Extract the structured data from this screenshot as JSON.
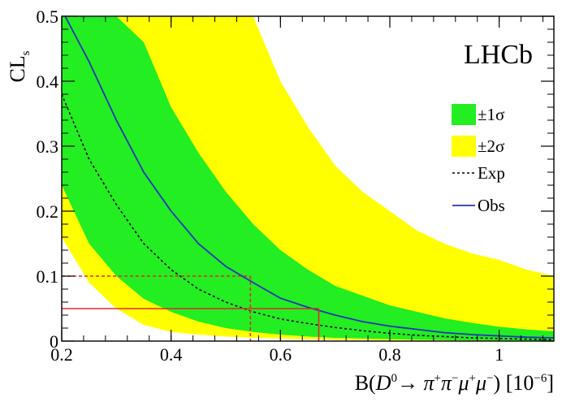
{
  "chart_data": {
    "type": "area",
    "title": "",
    "experiment_label": "LHCb",
    "xlabel": "B(D0 → π+π−μ+μ−) [10−6]",
    "ylabel": "CLs",
    "xlim": [
      0.2,
      1.1
    ],
    "ylim": [
      0,
      0.5
    ],
    "x_ticks": [
      "0.2",
      "0.4",
      "0.6",
      "0.8",
      "1"
    ],
    "y_ticks": [
      "0",
      "0.1",
      "0.2",
      "0.3",
      "0.4",
      "0.5"
    ],
    "legend_position": "right",
    "legend": [
      {
        "label": "±1σ",
        "kind": "band-1sigma"
      },
      {
        "label": "±2σ",
        "kind": "band-2sigma"
      },
      {
        "label": "Exp",
        "kind": "expected"
      },
      {
        "label": "Obs",
        "kind": "observed"
      }
    ],
    "x": [
      0.2,
      0.25,
      0.3,
      0.35,
      0.4,
      0.45,
      0.5,
      0.55,
      0.6,
      0.65,
      0.7,
      0.75,
      0.8,
      0.85,
      0.9,
      0.95,
      1.0,
      1.05,
      1.1
    ],
    "series": [
      {
        "name": "Obs",
        "values": [
          0.51,
          0.43,
          0.34,
          0.26,
          0.2,
          0.15,
          0.115,
          0.09,
          0.066,
          0.052,
          0.04,
          0.03,
          0.023,
          0.018,
          0.013,
          0.01,
          0.008,
          0.006,
          0.005
        ]
      },
      {
        "name": "Exp",
        "values": [
          0.38,
          0.28,
          0.21,
          0.15,
          0.11,
          0.08,
          0.06,
          0.045,
          0.034,
          0.027,
          0.021,
          0.016,
          0.012,
          0.009,
          0.007,
          0.005,
          0.004,
          0.003,
          0.002
        ]
      },
      {
        "name": "±1σ",
        "lower": [
          0.24,
          0.15,
          0.1,
          0.065,
          0.045,
          0.03,
          0.02,
          0.014,
          0.01,
          0.007,
          0.005,
          0.004,
          0.003,
          0.002,
          0.0015,
          0.001,
          0.001,
          0.0008,
          0.0005
        ],
        "upper": [
          0.5,
          0.5,
          0.5,
          0.46,
          0.36,
          0.29,
          0.23,
          0.18,
          0.14,
          0.11,
          0.085,
          0.07,
          0.055,
          0.045,
          0.035,
          0.028,
          0.022,
          0.018,
          0.015
        ]
      },
      {
        "name": "±2σ",
        "lower": [
          0.16,
          0.09,
          0.05,
          0.025,
          0.014,
          0.01,
          0.007,
          0.005,
          0.004,
          0.003,
          0.002,
          0.002,
          0.001,
          0.001,
          0.001,
          0.0005,
          0.0005,
          0.0005,
          0.0005
        ],
        "upper": [
          0.5,
          0.5,
          0.5,
          0.5,
          0.5,
          0.5,
          0.5,
          0.5,
          0.4,
          0.33,
          0.27,
          0.23,
          0.2,
          0.17,
          0.15,
          0.135,
          0.125,
          0.11,
          0.1
        ]
      }
    ],
    "limit_markers": [
      {
        "cl": 0.1,
        "x": 0.545,
        "style": "dashed",
        "color": "#e8262a"
      },
      {
        "cl": 0.05,
        "x": 0.67,
        "style": "solid",
        "color": "#e8262a"
      }
    ],
    "colors": {
      "band_1sigma": "#22ee22",
      "band_2sigma": "#ffff00",
      "observed": "#2233bb",
      "expected": "#000000",
      "limit": "#e8262a"
    }
  }
}
